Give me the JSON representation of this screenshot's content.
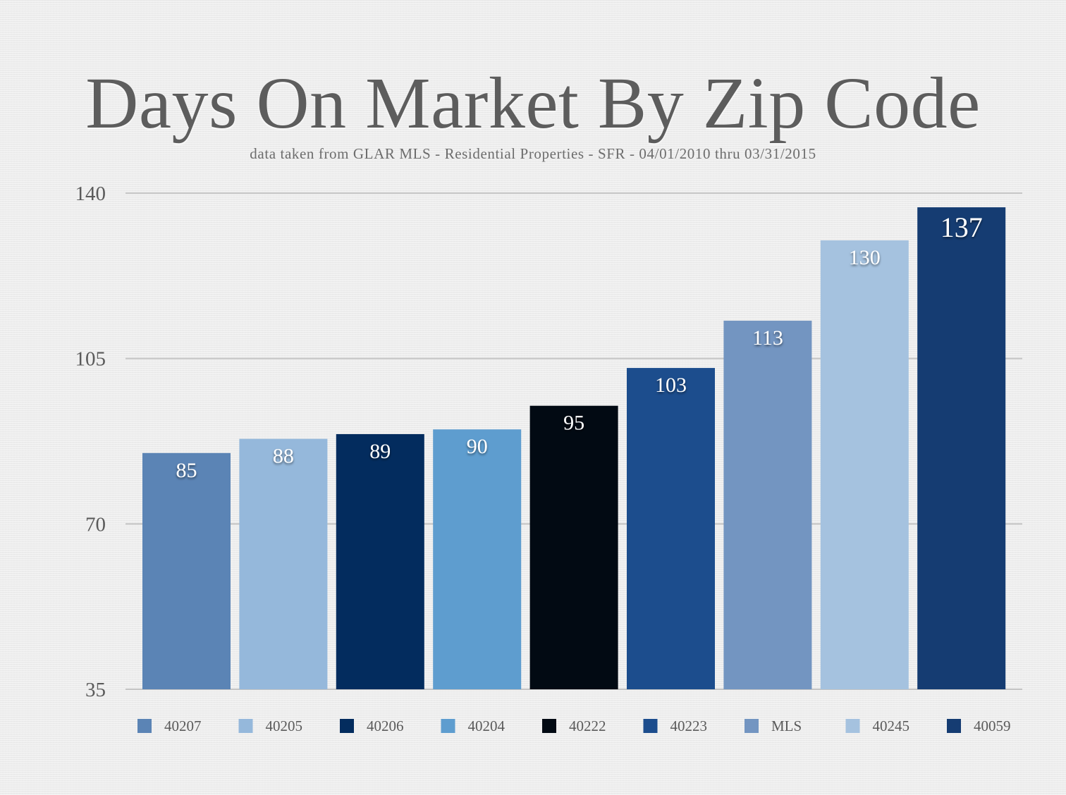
{
  "chart_data": {
    "type": "bar",
    "title": "Days On Market By Zip Code",
    "subtitle": "data taken from GLAR MLS - Residential Properties - SFR - 04/01/2010 thru 03/31/2015",
    "xlabel": "",
    "ylabel": "",
    "ylim": [
      35,
      140
    ],
    "yticks": [
      35,
      70,
      105,
      140
    ],
    "grid": true,
    "legend_position": "bottom",
    "categories": [
      "40207",
      "40205",
      "40206",
      "40204",
      "40222",
      "40223",
      "MLS",
      "40245",
      "40059"
    ],
    "values": [
      85,
      88,
      89,
      90,
      95,
      103,
      113,
      130,
      137
    ],
    "colors": [
      "#5b84b5",
      "#95b8db",
      "#032c5e",
      "#5e9dcf",
      "#020a13",
      "#1c4d8d",
      "#7395c1",
      "#a5c2df",
      "#153c72"
    ]
  }
}
